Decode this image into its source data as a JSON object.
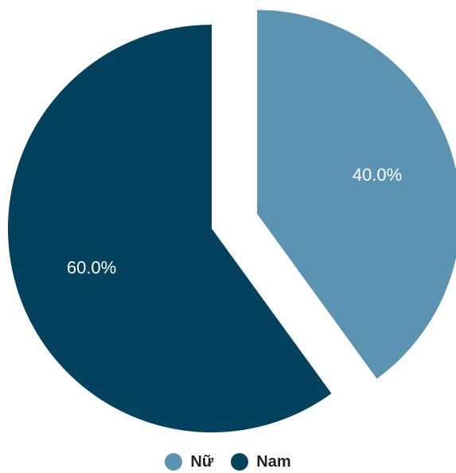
{
  "chart_data": {
    "type": "pie",
    "categories": [
      "Nữ",
      "Nam"
    ],
    "values": [
      40.0,
      60.0
    ],
    "labels": [
      "40.0%",
      "60.0%"
    ],
    "colors": [
      "#5b93b2",
      "#03425e"
    ],
    "exploded": true,
    "legend_position": "bottom"
  }
}
